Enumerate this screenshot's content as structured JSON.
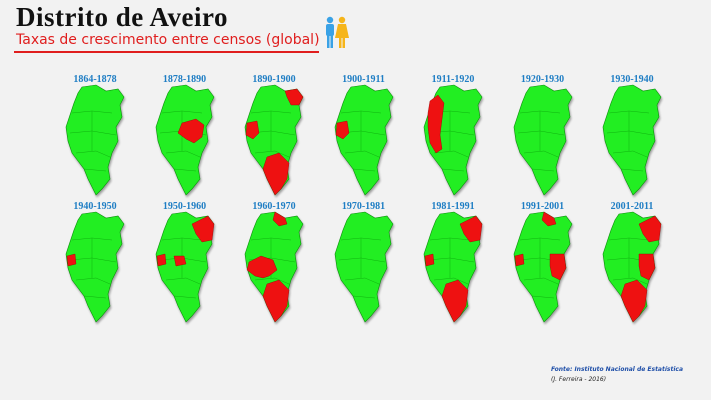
{
  "title": "Distrito de Aveiro",
  "subtitle": "Taxas de crescimento entre censos (global)",
  "icon": "people-icon",
  "colors": {
    "growth": "#22ee22",
    "decline": "#ee1111",
    "title_red": "#e01e1e",
    "period_blue": "#1f7ec4"
  },
  "periods": [
    {
      "label": "1864-1878",
      "decline": []
    },
    {
      "label": "1878-1890",
      "decline": [
        "mid-east"
      ]
    },
    {
      "label": "1890-1900",
      "decline": [
        "top",
        "west-mid",
        "south"
      ]
    },
    {
      "label": "1900-1911",
      "decline": [
        "west-mid"
      ]
    },
    {
      "label": "1911-1920",
      "decline": [
        "west-coast"
      ]
    },
    {
      "label": "1920-1930",
      "decline": []
    },
    {
      "label": "1930-1940",
      "decline": []
    },
    {
      "label": "1940-1950",
      "decline": [
        "west-mid-small"
      ]
    },
    {
      "label": "1950-1960",
      "decline": [
        "north-east",
        "west-mid-small",
        "center-small"
      ]
    },
    {
      "label": "1960-1970",
      "decline": [
        "north-tip",
        "center",
        "south"
      ]
    },
    {
      "label": "1970-1981",
      "decline": []
    },
    {
      "label": "1981-1991",
      "decline": [
        "north-east",
        "west-mid-small",
        "south"
      ]
    },
    {
      "label": "1991-2001",
      "decline": [
        "north-tip",
        "west-mid-small",
        "east-mid"
      ]
    },
    {
      "label": "2001-2011",
      "decline": [
        "north-east",
        "east-mid",
        "south"
      ]
    }
  ],
  "source": "Fonte: Instituto Nacional de Estatística",
  "author": "(J. Ferreira - 2016)"
}
